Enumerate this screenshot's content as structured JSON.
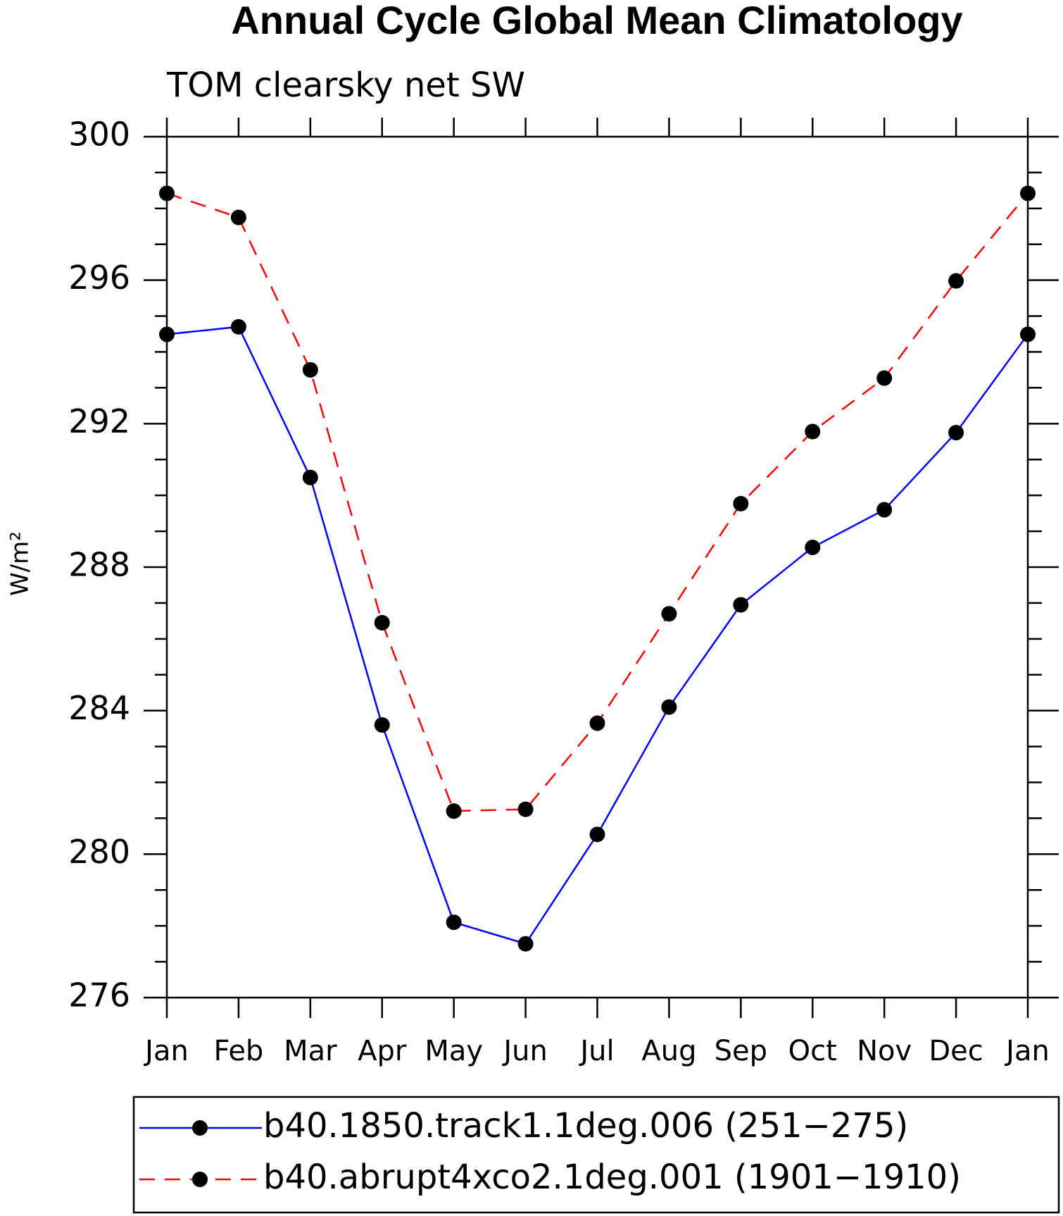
{
  "chart_data": {
    "type": "line",
    "title": "Annual Cycle Global Mean Climatology",
    "subtitle": "TOM clearsky net SW",
    "ylabel": "W/m²",
    "categories": [
      "Jan",
      "Feb",
      "Mar",
      "Apr",
      "May",
      "Jun",
      "Jul",
      "Aug",
      "Sep",
      "Oct",
      "Nov",
      "Dec",
      "Jan"
    ],
    "series": [
      {
        "name": "b40.1850.track1.1deg.006 (251−275)",
        "color": "#0000ff",
        "line_style": "solid",
        "values": [
          294.49,
          294.7,
          290.5,
          283.6,
          278.1,
          277.5,
          280.55,
          284.1,
          286.95,
          288.55,
          289.6,
          291.75,
          294.49
        ]
      },
      {
        "name": "b40.abrupt4xco2.1deg.001 (1901−1910)",
        "color": "#ff0000",
        "line_style": "dashed",
        "values": [
          298.42,
          297.75,
          293.5,
          286.45,
          281.2,
          281.25,
          283.65,
          286.7,
          289.77,
          291.78,
          293.27,
          295.98,
          298.42
        ]
      }
    ],
    "marker_color": "#000000",
    "ylim": [
      276,
      300
    ],
    "yticks": [
      276,
      280,
      284,
      288,
      292,
      296,
      300
    ],
    "yminorticks": [
      277,
      278,
      279,
      281,
      282,
      283,
      285,
      286,
      287,
      289,
      290,
      291,
      293,
      294,
      295,
      297,
      298,
      299
    ],
    "legend": "bottom"
  }
}
